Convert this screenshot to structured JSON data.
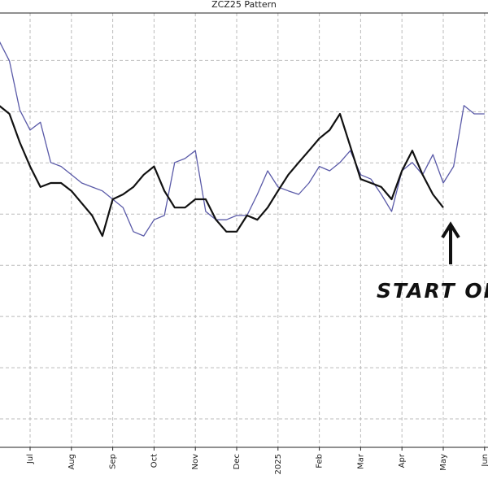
{
  "chart_data": {
    "type": "line",
    "title": "ZCZ25  Pattern",
    "annotation": "START OF RA",
    "categories": [
      null,
      null,
      null,
      "Jul",
      null,
      null,
      null,
      "Aug",
      null,
      null,
      null,
      "Sep",
      null,
      null,
      null,
      "Oct",
      null,
      null,
      null,
      "Nov",
      null,
      null,
      null,
      "Dec",
      null,
      null,
      null,
      "2025",
      null,
      null,
      null,
      "Feb",
      null,
      null,
      null,
      "Mar",
      null,
      null,
      null,
      "Apr",
      null,
      null,
      null,
      "May",
      null,
      null,
      null,
      "Jun"
    ],
    "series": [
      {
        "color": "#5a5aa8",
        "values": [
          92.9,
          88.3,
          77.1,
          72.5,
          74.3,
          65.1,
          64.2,
          62.3,
          60.4,
          59.5,
          58.6,
          56.7,
          54.8,
          49.3,
          48.3,
          52.0,
          53.0,
          65.1,
          66.0,
          67.8,
          53.9,
          52.0,
          52.0,
          53.0,
          53.0,
          57.8,
          63.2,
          59.5,
          58.6,
          57.8,
          60.4,
          64.2,
          63.2,
          65.1,
          67.8,
          62.3,
          61.3,
          57.8,
          53.9,
          63.2,
          65.1,
          62.3,
          66.9,
          60.4,
          64.2,
          78.1,
          76.2,
          76.2
        ]
      },
      {
        "color": "#111111",
        "values": [
          78.1,
          76.2,
          69.7,
          64.2,
          59.5,
          60.4,
          60.4,
          58.6,
          55.8,
          53.0,
          48.3,
          56.7,
          57.8,
          59.5,
          62.3,
          64.2,
          58.6,
          54.8,
          54.8,
          56.7,
          56.7,
          52.0,
          49.3,
          49.3,
          53.0,
          52.0,
          54.8,
          58.6,
          62.3,
          65.1,
          67.8,
          70.6,
          72.5,
          76.2,
          68.8,
          61.3,
          60.4,
          59.5,
          56.7,
          63.2,
          67.8,
          62.3,
          57.8,
          54.8,
          null,
          null,
          null,
          null
        ]
      }
    ],
    "ylim": [
      0,
      100
    ],
    "yticks": [
      6.5,
      18.2,
      29.9,
      41.6,
      53.3,
      65,
      76.7,
      88.4
    ],
    "grid": true
  }
}
